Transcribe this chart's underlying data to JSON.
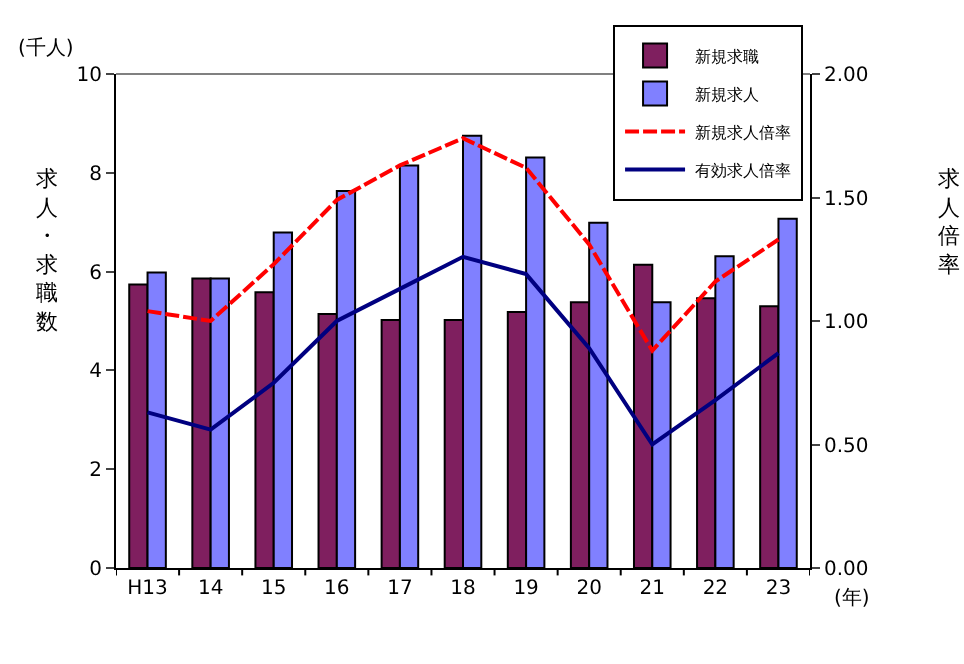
{
  "chart_data": {
    "type": "bar",
    "categories": [
      "H13",
      "14",
      "15",
      "16",
      "17",
      "18",
      "19",
      "20",
      "21",
      "22",
      "23"
    ],
    "series": [
      {
        "name": "新規求職",
        "color": "#7f1f5f",
        "values": [
          5.74,
          5.86,
          5.58,
          5.14,
          5.02,
          5.02,
          5.18,
          5.38,
          6.14,
          5.46,
          5.3
        ]
      },
      {
        "name": "新規求人",
        "color": "#8080ff",
        "values": [
          5.98,
          5.86,
          6.79,
          7.63,
          8.15,
          8.75,
          8.31,
          6.99,
          5.38,
          6.31,
          7.07
        ]
      },
      {
        "name": "新規求人倍率",
        "type": "line",
        "axis": "y2",
        "color": "#ff0000",
        "line_style": "dashed",
        "values": [
          1.04,
          1.0,
          1.23,
          1.49,
          1.63,
          1.74,
          1.62,
          1.31,
          0.88,
          1.16,
          1.33
        ]
      },
      {
        "name": "有効求人倍率",
        "type": "line",
        "axis": "y2",
        "color": "#000080",
        "line_style": "solid",
        "values": [
          0.63,
          0.56,
          0.75,
          1.0,
          1.13,
          1.26,
          1.19,
          0.89,
          0.5,
          0.68,
          0.87
        ]
      }
    ],
    "ylabel": "求人・求職数",
    "y2label": "求人倍率",
    "xlabel": "(年)",
    "annotations": [
      "(千人)"
    ],
    "ylim": [
      0,
      10
    ],
    "yticks": [
      0,
      2,
      4,
      6,
      8,
      10
    ],
    "y2lim": [
      0,
      2
    ],
    "y2ticks": [
      {
        "value": 0,
        "label": "0.00"
      },
      {
        "value": 0.5,
        "label": "0.50"
      },
      {
        "value": 1,
        "label": "1.00"
      },
      {
        "value": 1.5,
        "label": "1.50"
      },
      {
        "value": 2,
        "label": "2.00"
      }
    ],
    "legend": "top right",
    "marker": "none"
  }
}
